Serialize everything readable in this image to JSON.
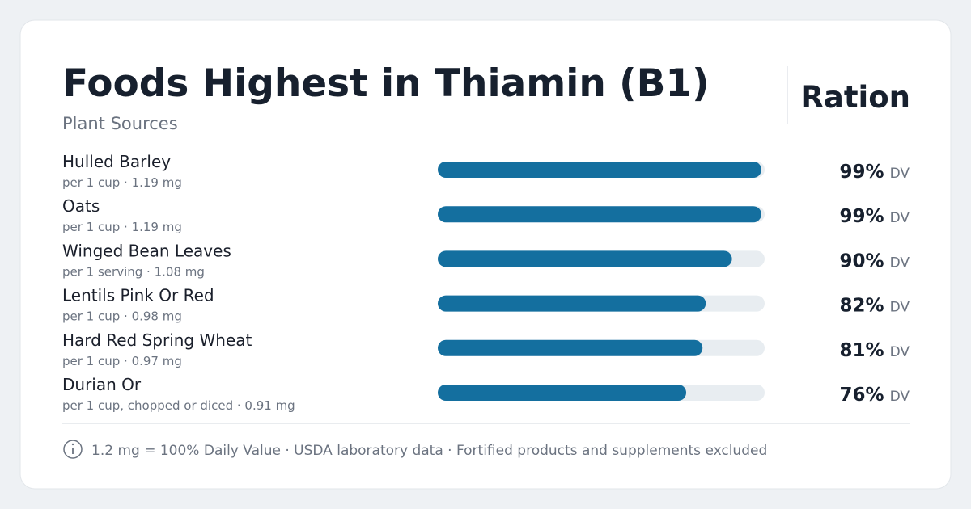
{
  "chart_data": {
    "type": "bar",
    "orientation": "horizontal",
    "title": "Foods Highest in Thiamin (B1)",
    "subtitle": "Plant Sources",
    "brand": "Ration",
    "categories": [
      "Hulled Barley",
      "Oats",
      "Winged Bean Leaves",
      "Lentils Pink Or Red",
      "Hard Red Spring Wheat",
      "Durian Or"
    ],
    "details": [
      "per 1 cup · 1.19 mg",
      "per 1 cup · 1.19 mg",
      "per 1 serving · 1.08 mg",
      "per 1 cup · 0.98 mg",
      "per 1 cup · 0.97 mg",
      "per 1 cup, chopped or diced · 0.91 mg"
    ],
    "values": [
      99,
      99,
      90,
      82,
      81,
      76
    ],
    "value_labels": [
      "99%",
      "99%",
      "90%",
      "82%",
      "81%",
      "76%"
    ],
    "value_unit": "DV",
    "color": "#146f9f",
    "track_color": "#e8edf1",
    "xlim": [
      0,
      100
    ],
    "footnote": "1.2 mg = 100% Daily Value · USDA laboratory data · Fortified products and supplements excluded"
  }
}
